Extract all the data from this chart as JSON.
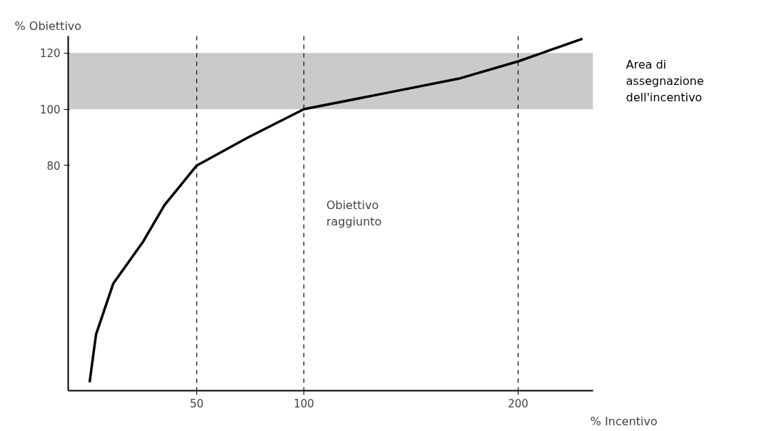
{
  "chart_data": {
    "type": "line",
    "xlabel": "% Incentivo",
    "ylabel": "% Obiettivo",
    "x": [
      0,
      3,
      11,
      25,
      35,
      50,
      74,
      100,
      140,
      173,
      200,
      230
    ],
    "series": [
      {
        "color": "#000000",
        "values": [
          3,
          20,
          38,
          53,
          66,
          80,
          90,
          100,
          106,
          111,
          117,
          125
        ]
      }
    ],
    "xlim": [
      -10,
      235
    ],
    "ylim": [
      0,
      126
    ],
    "xticks": [
      50,
      100,
      200
    ],
    "yticks": [
      80,
      100,
      120
    ],
    "ref_lines": [
      {
        "axis": "x",
        "value": 50,
        "line_style": "dashed",
        "color": "#000000"
      },
      {
        "axis": "x",
        "value": 100,
        "line_style": "dashed",
        "color": "#000000"
      },
      {
        "axis": "x",
        "value": 200,
        "line_style": "dashed",
        "color": "#000000"
      }
    ],
    "bands": [
      {
        "axis": "y",
        "from": 100,
        "to": 120,
        "label": "Area di assegnazione dell'incentivo",
        "color": "#bdbdbd"
      }
    ],
    "annotations": [
      "Obiettivo raggiunto"
    ],
    "grid": false,
    "marker": "none",
    "line_style": "solid"
  }
}
